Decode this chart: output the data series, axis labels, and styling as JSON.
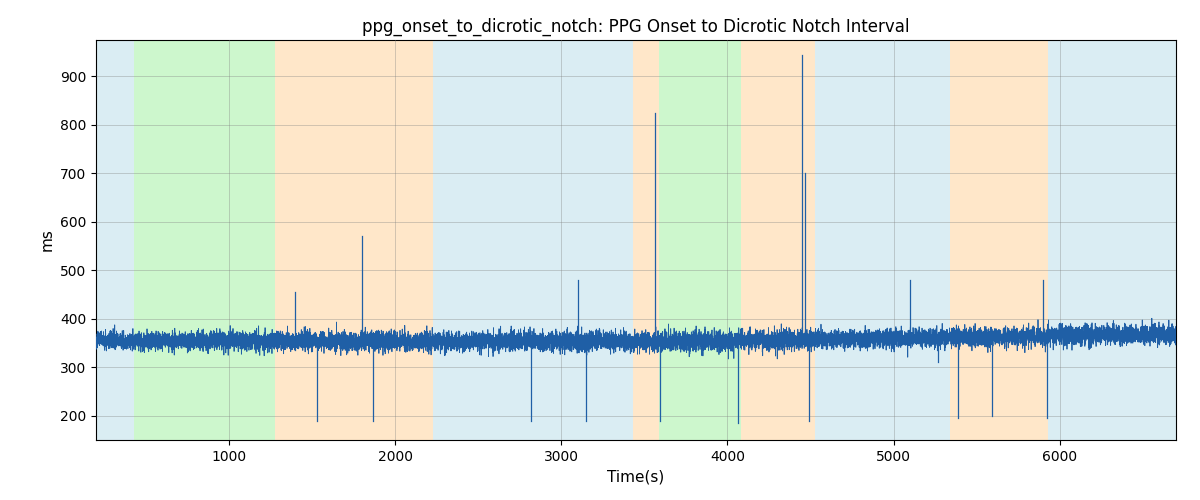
{
  "title": "ppg_onset_to_dicrotic_notch: PPG Onset to Dicrotic Notch Interval",
  "xlabel": "Time(s)",
  "ylabel": "ms",
  "xlim": [
    200,
    6700
  ],
  "ylim": [
    150,
    975
  ],
  "yticks": [
    200,
    300,
    400,
    500,
    600,
    700,
    800,
    900
  ],
  "xticks": [
    1000,
    2000,
    3000,
    4000,
    5000,
    6000
  ],
  "signal_color": "#1f5fa6",
  "line_width": 0.6,
  "base_mean": 354,
  "base_std": 10,
  "noise_seed": 42,
  "background_bands": [
    {
      "xmin": 200,
      "xmax": 430,
      "color": "#add8e6",
      "alpha": 0.45
    },
    {
      "xmin": 430,
      "xmax": 1280,
      "color": "#90ee90",
      "alpha": 0.45
    },
    {
      "xmin": 1280,
      "xmax": 2230,
      "color": "#ffd59e",
      "alpha": 0.55
    },
    {
      "xmin": 2230,
      "xmax": 3430,
      "color": "#add8e6",
      "alpha": 0.45
    },
    {
      "xmin": 3430,
      "xmax": 3590,
      "color": "#ffd59e",
      "alpha": 0.55
    },
    {
      "xmin": 3590,
      "xmax": 4080,
      "color": "#90ee90",
      "alpha": 0.45
    },
    {
      "xmin": 4080,
      "xmax": 4530,
      "color": "#ffd59e",
      "alpha": 0.55
    },
    {
      "xmin": 4530,
      "xmax": 5340,
      "color": "#add8e6",
      "alpha": 0.45
    },
    {
      "xmin": 5340,
      "xmax": 5930,
      "color": "#ffd59e",
      "alpha": 0.55
    },
    {
      "xmin": 5930,
      "xmax": 6700,
      "color": "#add8e6",
      "alpha": 0.45
    }
  ],
  "spikes": [
    {
      "x": 1395,
      "y_high": 455,
      "y_low": null
    },
    {
      "x": 1530,
      "y_high": null,
      "y_low": 190
    },
    {
      "x": 1800,
      "y_high": 570,
      "y_low": null
    },
    {
      "x": 1870,
      "y_high": null,
      "y_low": 190
    },
    {
      "x": 2820,
      "y_high": null,
      "y_low": 190
    },
    {
      "x": 3100,
      "y_high": 480,
      "y_low": null
    },
    {
      "x": 3150,
      "y_high": null,
      "y_low": 190
    },
    {
      "x": 3565,
      "y_high": 825,
      "y_low": null
    },
    {
      "x": 3595,
      "y_high": null,
      "y_low": 190
    },
    {
      "x": 4065,
      "y_high": null,
      "y_low": 185
    },
    {
      "x": 4450,
      "y_high": 945,
      "y_low": null
    },
    {
      "x": 4470,
      "y_high": 700,
      "y_low": null
    },
    {
      "x": 4490,
      "y_high": null,
      "y_low": 190
    },
    {
      "x": 5100,
      "y_high": 480,
      "y_low": null
    },
    {
      "x": 5270,
      "y_high": null,
      "y_low": 310
    },
    {
      "x": 5385,
      "y_high": null,
      "y_low": 195
    },
    {
      "x": 5590,
      "y_high": null,
      "y_low": 200
    },
    {
      "x": 5900,
      "y_high": 480,
      "y_low": null
    },
    {
      "x": 5925,
      "y_high": null,
      "y_low": 195
    }
  ],
  "figsize": [
    12.0,
    5.0
  ],
  "dpi": 100
}
